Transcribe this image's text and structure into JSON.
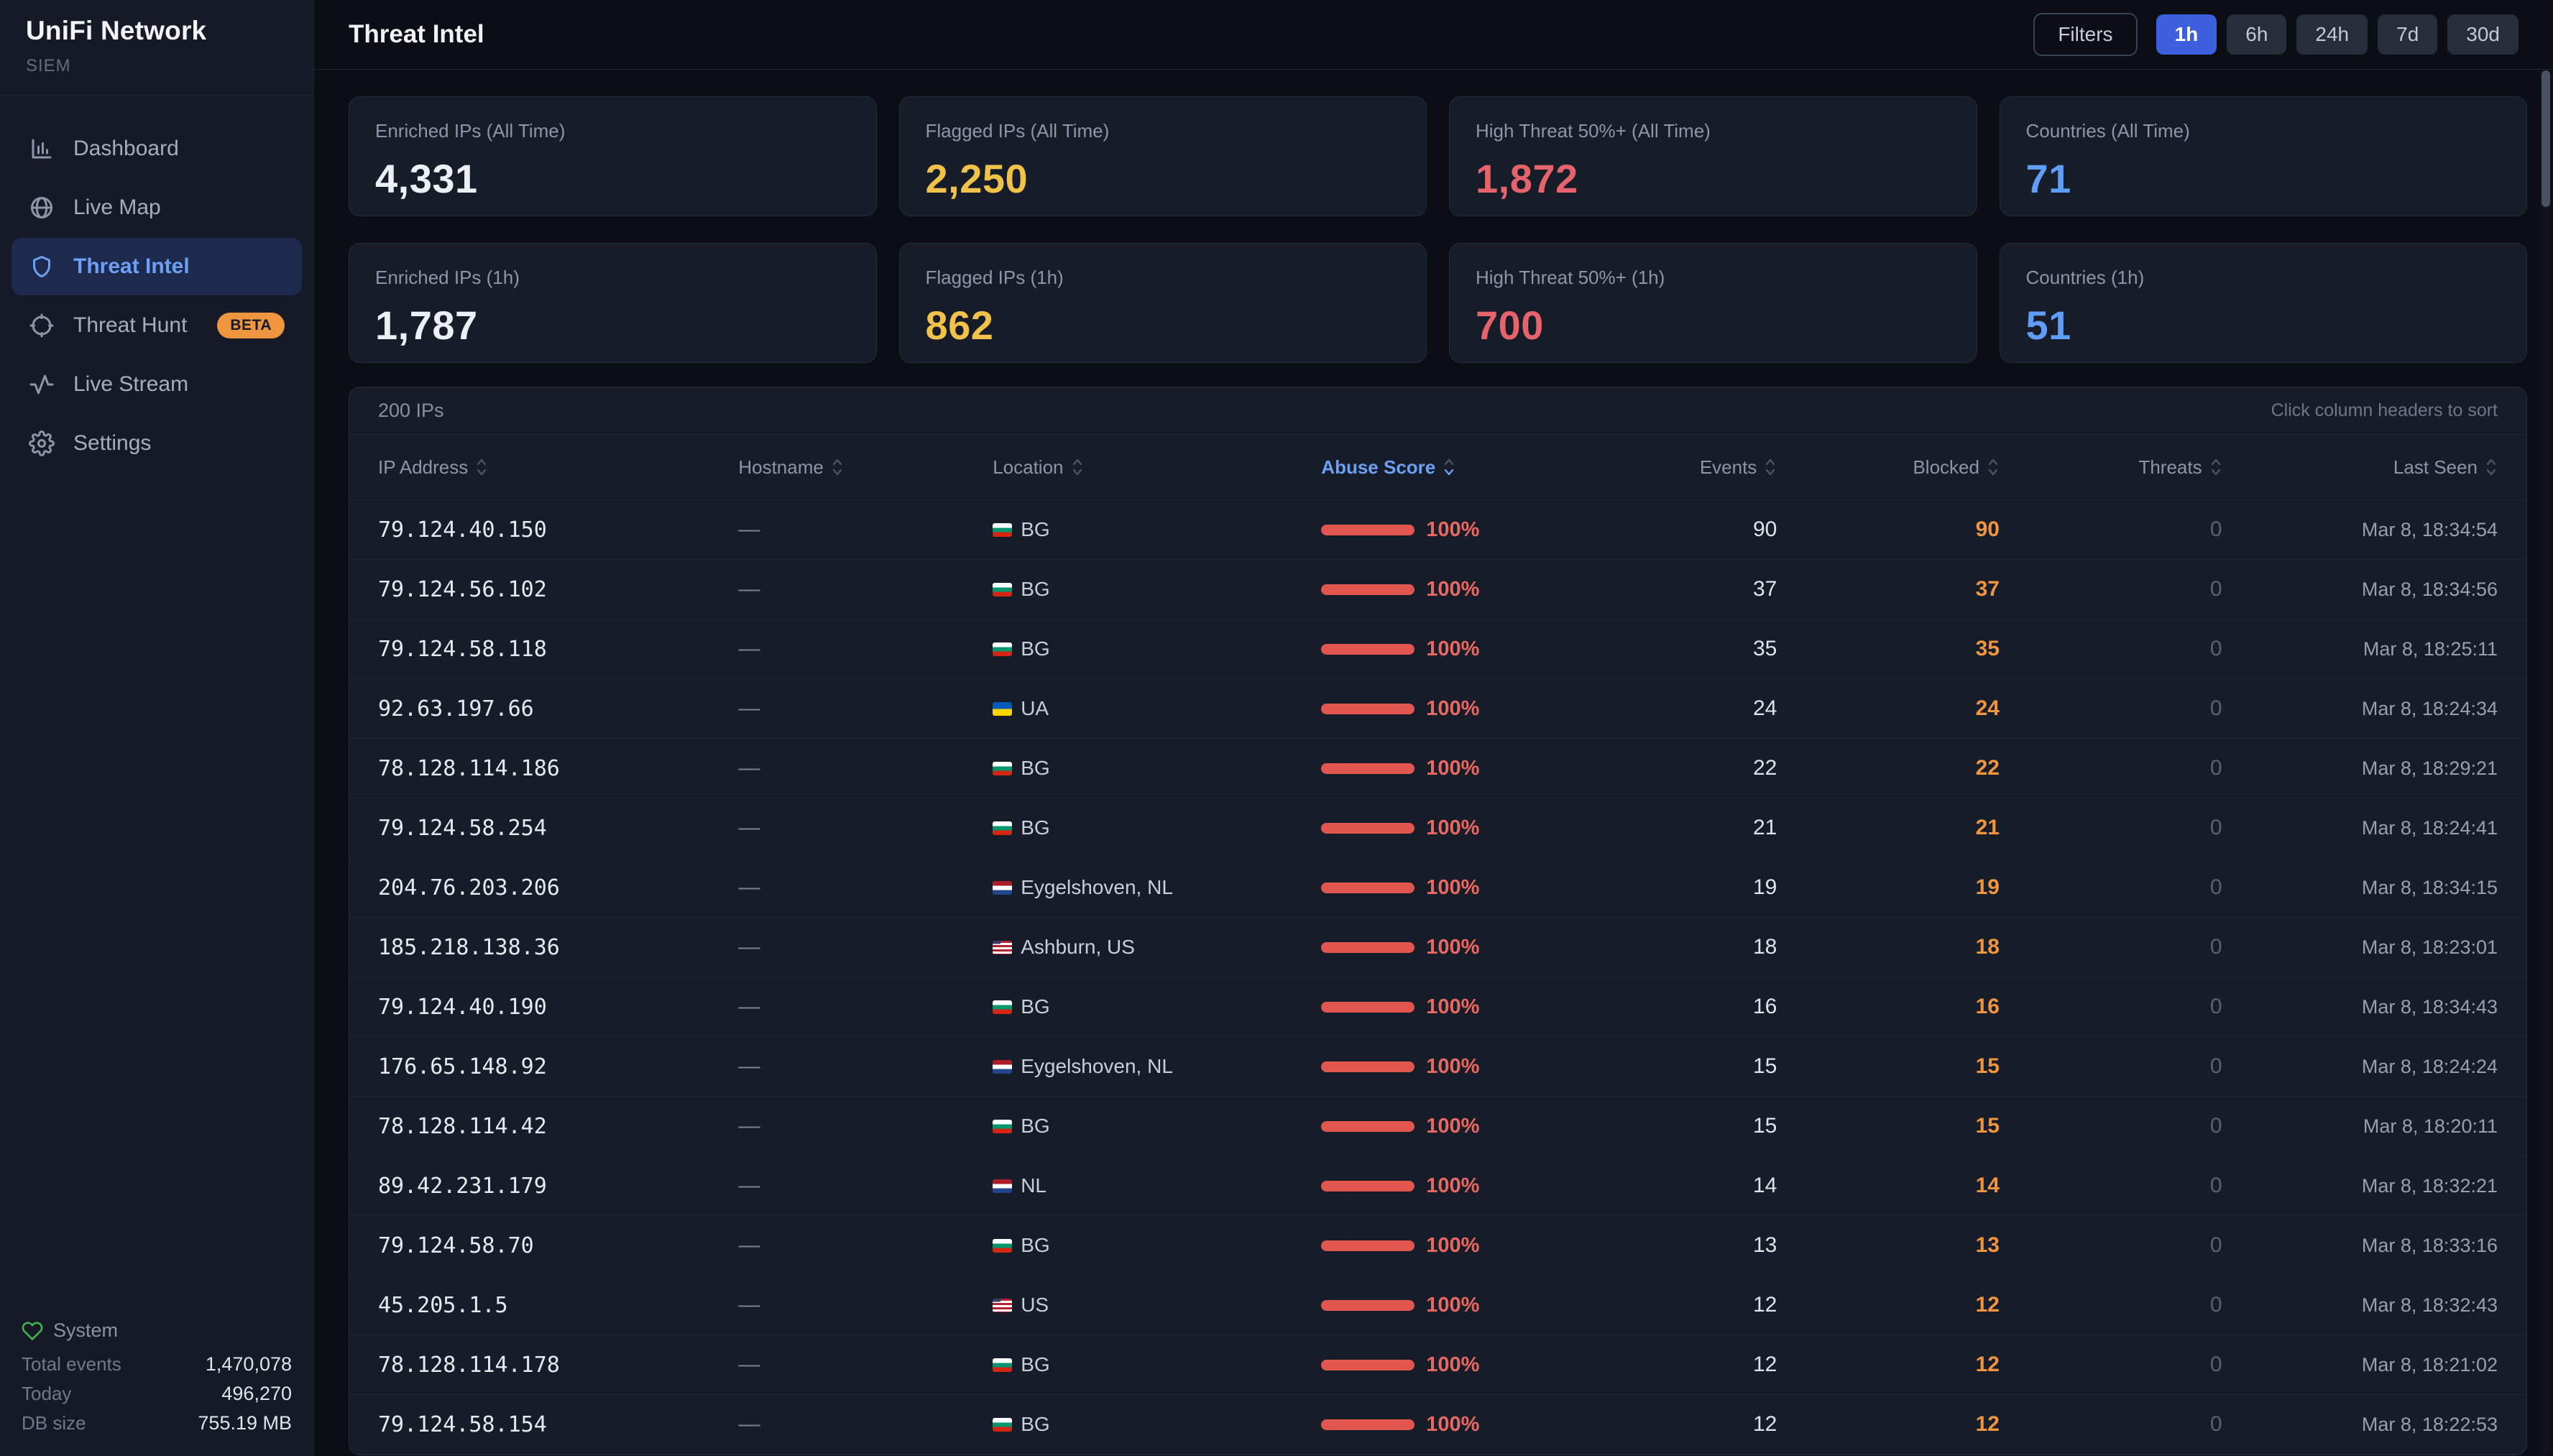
{
  "sidebar": {
    "title": "UniFi Network",
    "subtitle": "SIEM",
    "nav": [
      {
        "label": "Dashboard"
      },
      {
        "label": "Live Map"
      },
      {
        "label": "Threat Intel"
      },
      {
        "label": "Threat Hunt",
        "badge": "BETA"
      },
      {
        "label": "Live Stream"
      },
      {
        "label": "Settings"
      }
    ],
    "system": {
      "title": "System",
      "rows": [
        {
          "label": "Total events",
          "value": "1,470,078"
        },
        {
          "label": "Today",
          "value": "496,270"
        },
        {
          "label": "DB size",
          "value": "755.19 MB"
        }
      ]
    }
  },
  "header": {
    "title": "Threat Intel",
    "filters_label": "Filters",
    "ranges": [
      {
        "label": "1h",
        "active": true
      },
      {
        "label": "6h",
        "active": false
      },
      {
        "label": "24h",
        "active": false
      },
      {
        "label": "7d",
        "active": false
      },
      {
        "label": "30d",
        "active": false
      }
    ]
  },
  "stats": [
    {
      "label": "Enriched IPs (All Time)",
      "value": "4,331",
      "color": "#eceff4"
    },
    {
      "label": "Flagged IPs (All Time)",
      "value": "2,250",
      "color": "#f0c24a"
    },
    {
      "label": "High Threat 50%+ (All Time)",
      "value": "1,872",
      "color": "#e5636a"
    },
    {
      "label": "Countries (All Time)",
      "value": "71",
      "color": "#5f9df6"
    },
    {
      "label": "Enriched IPs (1h)",
      "value": "1,787",
      "color": "#eceff4"
    },
    {
      "label": "Flagged IPs (1h)",
      "value": "862",
      "color": "#f0c24a"
    },
    {
      "label": "High Threat 50%+ (1h)",
      "value": "700",
      "color": "#e5636a"
    },
    {
      "label": "Countries (1h)",
      "value": "51",
      "color": "#5f9df6"
    }
  ],
  "table": {
    "count_label": "200 IPs",
    "sort_hint": "Click column headers to sort",
    "columns": [
      "IP Address",
      "Hostname",
      "Location",
      "Abuse Score",
      "Events",
      "Blocked",
      "Threats",
      "Last Seen"
    ],
    "sorted_column": "Abuse Score",
    "sort_direction": "desc",
    "rows": [
      {
        "ip": "79.124.40.150",
        "hostname": "—",
        "flag": "bg",
        "location": "BG",
        "abuse_pct": "100%",
        "events": "90",
        "blocked": "90",
        "threats": "0",
        "last_seen": "Mar 8, 18:34:54"
      },
      {
        "ip": "79.124.56.102",
        "hostname": "—",
        "flag": "bg",
        "location": "BG",
        "abuse_pct": "100%",
        "events": "37",
        "blocked": "37",
        "threats": "0",
        "last_seen": "Mar 8, 18:34:56"
      },
      {
        "ip": "79.124.58.118",
        "hostname": "—",
        "flag": "bg",
        "location": "BG",
        "abuse_pct": "100%",
        "events": "35",
        "blocked": "35",
        "threats": "0",
        "last_seen": "Mar 8, 18:25:11"
      },
      {
        "ip": "92.63.197.66",
        "hostname": "—",
        "flag": "ua",
        "location": "UA",
        "abuse_pct": "100%",
        "events": "24",
        "blocked": "24",
        "threats": "0",
        "last_seen": "Mar 8, 18:24:34"
      },
      {
        "ip": "78.128.114.186",
        "hostname": "—",
        "flag": "bg",
        "location": "BG",
        "abuse_pct": "100%",
        "events": "22",
        "blocked": "22",
        "threats": "0",
        "last_seen": "Mar 8, 18:29:21"
      },
      {
        "ip": "79.124.58.254",
        "hostname": "—",
        "flag": "bg",
        "location": "BG",
        "abuse_pct": "100%",
        "events": "21",
        "blocked": "21",
        "threats": "0",
        "last_seen": "Mar 8, 18:24:41"
      },
      {
        "ip": "204.76.203.206",
        "hostname": "—",
        "flag": "nl",
        "location": "Eygelshoven, NL",
        "abuse_pct": "100%",
        "events": "19",
        "blocked": "19",
        "threats": "0",
        "last_seen": "Mar 8, 18:34:15"
      },
      {
        "ip": "185.218.138.36",
        "hostname": "—",
        "flag": "us",
        "location": "Ashburn, US",
        "abuse_pct": "100%",
        "events": "18",
        "blocked": "18",
        "threats": "0",
        "last_seen": "Mar 8, 18:23:01"
      },
      {
        "ip": "79.124.40.190",
        "hostname": "—",
        "flag": "bg",
        "location": "BG",
        "abuse_pct": "100%",
        "events": "16",
        "blocked": "16",
        "threats": "0",
        "last_seen": "Mar 8, 18:34:43"
      },
      {
        "ip": "176.65.148.92",
        "hostname": "—",
        "flag": "nl",
        "location": "Eygelshoven, NL",
        "abuse_pct": "100%",
        "events": "15",
        "blocked": "15",
        "threats": "0",
        "last_seen": "Mar 8, 18:24:24"
      },
      {
        "ip": "78.128.114.42",
        "hostname": "—",
        "flag": "bg",
        "location": "BG",
        "abuse_pct": "100%",
        "events": "15",
        "blocked": "15",
        "threats": "0",
        "last_seen": "Mar 8, 18:20:11"
      },
      {
        "ip": "89.42.231.179",
        "hostname": "—",
        "flag": "nl",
        "location": "NL",
        "abuse_pct": "100%",
        "events": "14",
        "blocked": "14",
        "threats": "0",
        "last_seen": "Mar 8, 18:32:21"
      },
      {
        "ip": "79.124.58.70",
        "hostname": "—",
        "flag": "bg",
        "location": "BG",
        "abuse_pct": "100%",
        "events": "13",
        "blocked": "13",
        "threats": "0",
        "last_seen": "Mar 8, 18:33:16"
      },
      {
        "ip": "45.205.1.5",
        "hostname": "—",
        "flag": "us",
        "location": "US",
        "abuse_pct": "100%",
        "events": "12",
        "blocked": "12",
        "threats": "0",
        "last_seen": "Mar 8, 18:32:43"
      },
      {
        "ip": "78.128.114.178",
        "hostname": "—",
        "flag": "bg",
        "location": "BG",
        "abuse_pct": "100%",
        "events": "12",
        "blocked": "12",
        "threats": "0",
        "last_seen": "Mar 8, 18:21:02"
      },
      {
        "ip": "79.124.58.154",
        "hostname": "—",
        "flag": "bg",
        "location": "BG",
        "abuse_pct": "100%",
        "events": "12",
        "blocked": "12",
        "threats": "0",
        "last_seen": "Mar 8, 18:22:53"
      }
    ]
  }
}
